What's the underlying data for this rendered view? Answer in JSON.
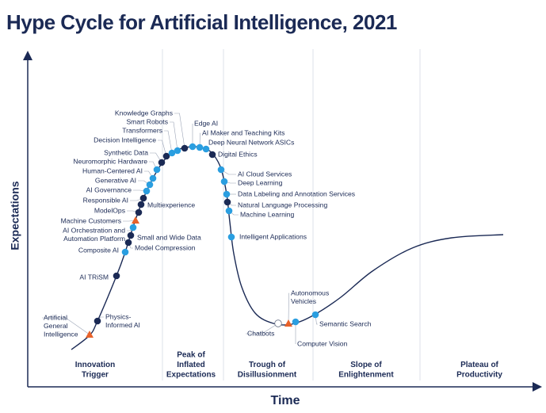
{
  "title": "Hype Cycle for Artificial Intelligence, 2021",
  "y_axis_label": "Expectations",
  "x_axis_label": "Time",
  "phases": [
    [
      "Innovation",
      "Trigger"
    ],
    [
      "Peak of",
      "Inflated",
      "Expectations"
    ],
    [
      "Trough of",
      "Disillusionment"
    ],
    [
      "Slope of",
      "Enlightenment"
    ],
    [
      "Plateau of",
      "Productivity"
    ]
  ],
  "technologies": [
    [
      "Artificial",
      "General",
      "Intelligence"
    ],
    [
      "Physics-",
      "Informed AI"
    ],
    "AI TRiSM",
    "Composite AI",
    "Model Compression",
    "Small and Wide Data",
    [
      "AI Orchestration and",
      "Automation Platform"
    ],
    "Machine Customers",
    "ModelOps",
    "Multiexperience",
    "Responsible AI",
    "AI Governance",
    "Generative AI",
    "Human-Centered AI",
    "Neuromorphic Hardware",
    "Synthetic Data",
    "Decision Intelligence",
    "Transformers",
    "Smart Robots",
    "Knowledge Graphs",
    "Edge AI",
    "AI Maker and Teaching Kits",
    "Deep Neural Network ASICs",
    "Digital Ethics",
    "AI Cloud Services",
    "Deep Learning",
    "Data Labeling and Annotation Services",
    "Natural Language Processing",
    "Machine Learning",
    "Intelligent Applications",
    "Chatbots",
    [
      "Autonomous",
      "Vehicles"
    ],
    "Computer Vision",
    "Semantic Search"
  ]
}
